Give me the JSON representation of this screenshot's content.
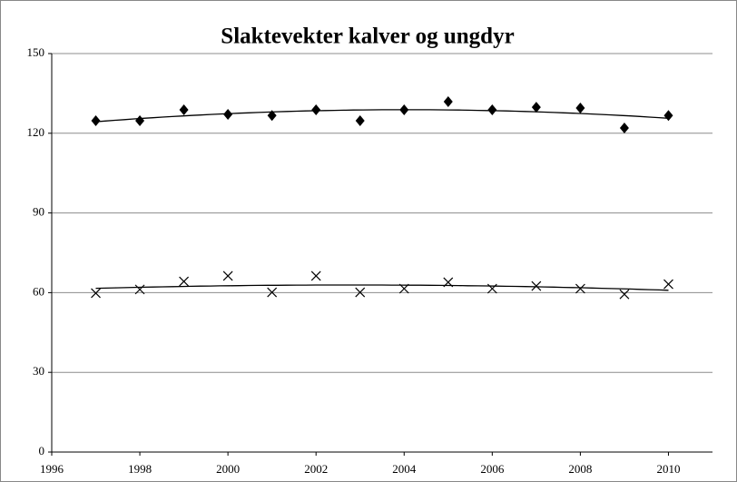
{
  "chart_data": {
    "type": "scatter",
    "title": "Slaktevekter kalver og ungdyr",
    "x": [
      1997,
      1998,
      1999,
      2000,
      2001,
      2002,
      2003,
      2004,
      2005,
      2006,
      2007,
      2008,
      2009,
      2010
    ],
    "series": [
      {
        "color": "#000000",
        "marker": "diamond",
        "values": [
          124.7,
          124.7,
          128.8,
          127.1,
          126.7,
          128.8,
          124.7,
          128.8,
          131.9,
          128.8,
          129.8,
          129.5,
          122,
          126.7
        ]
      },
      {
        "color": "#000000",
        "marker": "x",
        "values": [
          59.8,
          61.2,
          64.2,
          66.3,
          60.1,
          66.3,
          60.1,
          61.5,
          63.9,
          61.5,
          62.5,
          61.5,
          59.4,
          63.2
        ]
      }
    ],
    "trendline": "polynomial-2",
    "xlim": [
      1996,
      2011
    ],
    "xticks": [
      1996,
      1998,
      2000,
      2002,
      2004,
      2006,
      2008,
      2010
    ],
    "ylim": [
      0,
      150
    ],
    "yticks": [
      0,
      30,
      60,
      90,
      120,
      150
    ],
    "grid": true
  }
}
